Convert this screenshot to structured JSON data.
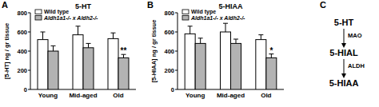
{
  "chart_data": [
    {
      "type": "bar",
      "panel": "A",
      "title": "5-HT",
      "y_label": "[5-HT] ng / gr tissue",
      "categories": [
        "Young",
        "Mid-aged",
        "Old"
      ],
      "series": [
        {
          "name": "Wild type",
          "color": "#ffffff",
          "values": [
            520,
            570,
            530
          ],
          "errors": [
            80,
            90,
            60
          ]
        },
        {
          "name": "Aldh1a1-/- x Aldh2-/-",
          "color": "#b3b3b3",
          "values": [
            400,
            435,
            330
          ],
          "errors": [
            55,
            45,
            35
          ]
        }
      ],
      "ylim": [
        0,
        800
      ],
      "yticks": [
        0,
        200,
        400,
        600,
        800
      ],
      "grid": false,
      "legend": "top",
      "annotations": [
        {
          "text": "**",
          "category": "Old",
          "series": "Aldh1a1-/- x Aldh2-/-"
        }
      ]
    },
    {
      "type": "bar",
      "panel": "B",
      "title": "5-HIAA",
      "y_label": "[5-HIAA] ng / gr tissue",
      "categories": [
        "Young",
        "Mid-aged",
        "Old"
      ],
      "series": [
        {
          "name": "Wild type",
          "color": "#ffffff",
          "values": [
            580,
            600,
            520
          ],
          "errors": [
            80,
            90,
            50
          ]
        },
        {
          "name": "Aldh1a1-/- x Aldh2-/-",
          "color": "#b3b3b3",
          "values": [
            480,
            480,
            330
          ],
          "errors": [
            55,
            45,
            40
          ]
        }
      ],
      "ylim": [
        0,
        800
      ],
      "yticks": [
        0,
        200,
        400,
        600,
        800
      ],
      "grid": false,
      "legend": "top",
      "annotations": [
        {
          "text": "*",
          "category": "Old",
          "series": "Aldh1a1-/- x Aldh2-/-"
        }
      ]
    }
  ],
  "diagram": {
    "panel": "C",
    "nodes": [
      "5-HT",
      "5-HIAL",
      "5-HIAA"
    ],
    "edges": [
      "MAO",
      "ALDH"
    ]
  }
}
